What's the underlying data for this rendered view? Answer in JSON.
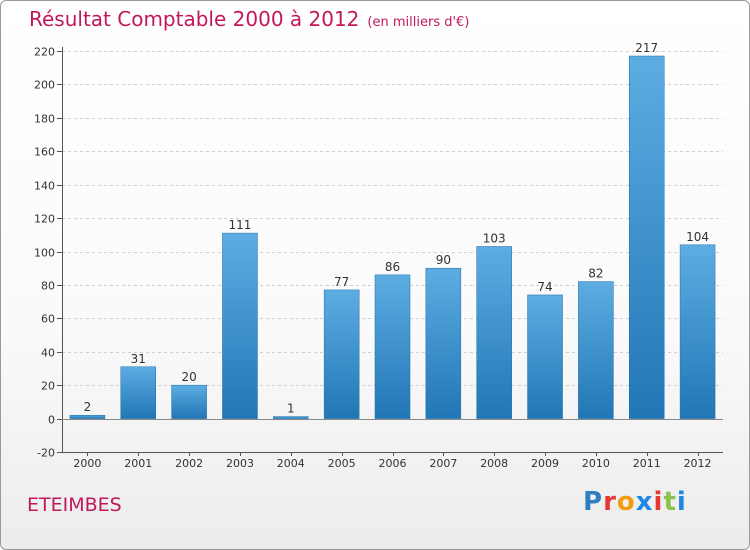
{
  "header": {
    "title": "Résultat Comptable 2000 à 2012",
    "subtitle": "(en milliers d'€)"
  },
  "footer": {
    "commune": "ETEIMBES",
    "logo_text": "Proxiti",
    "logo_colors": [
      "#2e7fc1",
      "#e53935",
      "#f39c12",
      "#1e88e5",
      "#e53935",
      "#8bc34a",
      "#1e88e5"
    ]
  },
  "colors": {
    "bar_light": "#5dade2",
    "bar_dark": "#2176b5",
    "title": "#c2185b",
    "grid": "#cfcfcf"
  },
  "chart_data": {
    "type": "bar",
    "title": "Résultat Comptable 2000 à 2012",
    "subtitle": "(en milliers d'€)",
    "categories": [
      "2000",
      "2001",
      "2002",
      "2003",
      "2004",
      "2005",
      "2006",
      "2007",
      "2008",
      "2009",
      "2010",
      "2011",
      "2012"
    ],
    "values": [
      2,
      31,
      20,
      111,
      1,
      77,
      86,
      90,
      103,
      74,
      82,
      217,
      104
    ],
    "ylim": [
      -20,
      220
    ],
    "yticks": [
      -20,
      0,
      20,
      40,
      60,
      80,
      100,
      120,
      140,
      160,
      180,
      200,
      220
    ],
    "grid": "horizontal",
    "xlabel": "",
    "ylabel": ""
  }
}
